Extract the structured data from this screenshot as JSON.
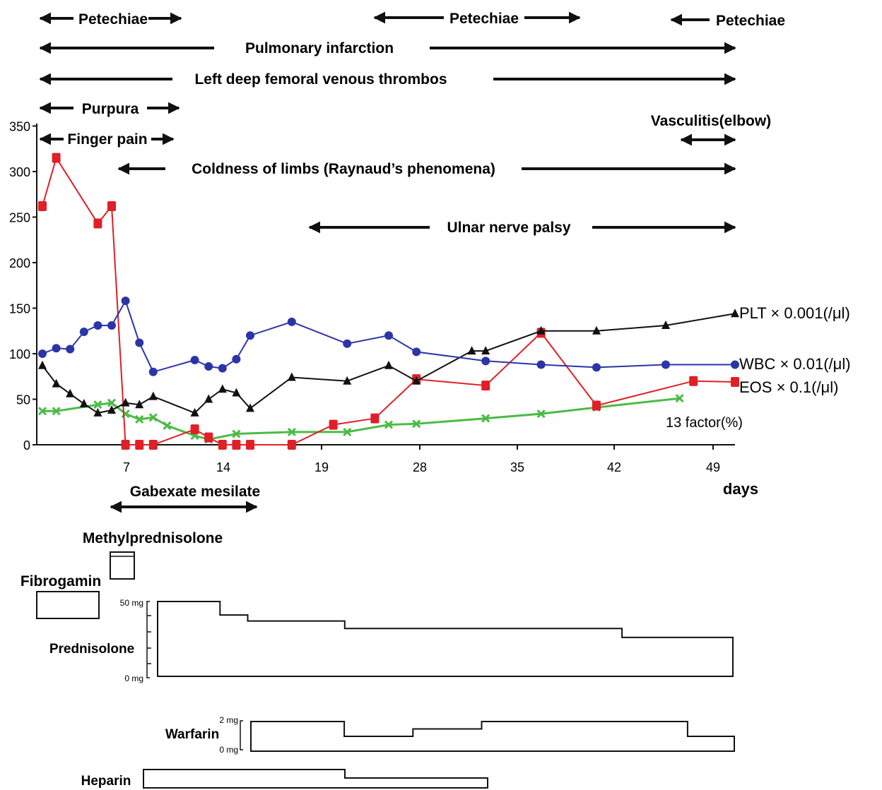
{
  "colors": {
    "plt": "#111111",
    "wbc": "#2b35a8",
    "eos": "#e01f26",
    "factor13": "#4cbb47",
    "axis": "#111111",
    "text": "#111111"
  },
  "clinical_events": [
    {
      "label": "Petechiae",
      "row": 1,
      "start_day": 1,
      "end_day": 14
    },
    {
      "label": "Petechiae",
      "row": 1,
      "start_day": 32,
      "end_day": 25
    },
    {
      "label": "Petechiae",
      "row": 1,
      "start_day": 47,
      "end_day": 47
    },
    {
      "label": "Pulmonary infarction",
      "row": 2,
      "start_day": 1,
      "end_day": 50
    },
    {
      "label": "Left deep femoral venous thrombos",
      "row": 3,
      "start_day": 1,
      "end_day": 50
    },
    {
      "label": "Purpura",
      "row": 4,
      "start_day": 1,
      "end_day": 14
    },
    {
      "label": "Vasculitis(elbow)",
      "row": 5,
      "start_day": 46,
      "end_day": 50
    },
    {
      "label": "Finger pain",
      "row": 5,
      "start_day": 1,
      "end_day": 13
    },
    {
      "label": "Coldness of limbs (Raynaud’s phenomena)",
      "row": 6,
      "start_day": 7,
      "end_day": 50
    },
    {
      "label": "Ulnar nerve palsy",
      "row": 7,
      "start_day": 19,
      "end_day": 50
    }
  ],
  "chart_data": {
    "type": "line",
    "xlabel": "days",
    "ylabel": "",
    "ylim": [
      0,
      350
    ],
    "y_ticks": [
      "0",
      "50",
      "100",
      "150",
      "200",
      "250",
      "300",
      "350"
    ],
    "x_ticks": [
      "7",
      "14",
      "19",
      "28",
      "35",
      "42",
      "49"
    ],
    "grid": false,
    "series": [
      {
        "name": "EOS × 0.1(/μl)",
        "key": "eos",
        "marker": "square",
        "points": [
          [
            0,
            262
          ],
          [
            1,
            315
          ],
          [
            4,
            243
          ],
          [
            5,
            262
          ],
          [
            6,
            0
          ],
          [
            7,
            0
          ],
          [
            8,
            0
          ],
          [
            11,
            17
          ],
          [
            12,
            8
          ],
          [
            13,
            0
          ],
          [
            14,
            0
          ],
          [
            15,
            0
          ],
          [
            18,
            0
          ],
          [
            21,
            22
          ],
          [
            24,
            29
          ],
          [
            27,
            72
          ],
          [
            32,
            65
          ],
          [
            36,
            123
          ],
          [
            40,
            43
          ],
          [
            47,
            70
          ],
          [
            50,
            69
          ]
        ]
      },
      {
        "name": "WBC × 0.01(/μl)",
        "key": "wbc",
        "marker": "circle",
        "points": [
          [
            0,
            100
          ],
          [
            1,
            106
          ],
          [
            2,
            105
          ],
          [
            3,
            124
          ],
          [
            4,
            131
          ],
          [
            5,
            131
          ],
          [
            6,
            158
          ],
          [
            7,
            112
          ],
          [
            8,
            80
          ],
          [
            11,
            93
          ],
          [
            12,
            86
          ],
          [
            13,
            84
          ],
          [
            14,
            94
          ],
          [
            15,
            120
          ],
          [
            18,
            135
          ],
          [
            22,
            111
          ],
          [
            25,
            120
          ],
          [
            27,
            102
          ],
          [
            32,
            92
          ],
          [
            36,
            88
          ],
          [
            40,
            85
          ],
          [
            45,
            88
          ],
          [
            50,
            88
          ]
        ]
      },
      {
        "name": "PLT × 0.001(/μl)",
        "key": "plt",
        "marker": "triangle",
        "points": [
          [
            0,
            87
          ],
          [
            1,
            67
          ],
          [
            2,
            56
          ],
          [
            3,
            45
          ],
          [
            4,
            35
          ],
          [
            5,
            38
          ],
          [
            6,
            46
          ],
          [
            7,
            44
          ],
          [
            8,
            53
          ],
          [
            11,
            35
          ],
          [
            12,
            50
          ],
          [
            13,
            61
          ],
          [
            14,
            57
          ],
          [
            15,
            40
          ],
          [
            18,
            74
          ],
          [
            22,
            70
          ],
          [
            25,
            87
          ],
          [
            27,
            70
          ],
          [
            31,
            103
          ],
          [
            32,
            103
          ],
          [
            36,
            125
          ],
          [
            40,
            125
          ],
          [
            45,
            131
          ],
          [
            50,
            144
          ]
        ]
      },
      {
        "name": "13 factor(%)",
        "key": "factor13",
        "marker": "x",
        "points": [
          [
            0,
            37
          ],
          [
            1,
            37
          ],
          [
            4,
            44
          ],
          [
            5,
            46
          ],
          [
            6,
            34
          ],
          [
            7,
            28
          ],
          [
            8,
            30
          ],
          [
            9,
            21
          ],
          [
            11,
            10
          ],
          [
            12,
            6
          ],
          [
            14,
            12
          ],
          [
            18,
            14
          ],
          [
            22,
            14
          ],
          [
            25,
            22
          ],
          [
            27,
            23
          ],
          [
            32,
            29
          ],
          [
            36,
            34
          ],
          [
            40,
            41
          ],
          [
            46,
            51
          ]
        ]
      }
    ]
  },
  "treatments": {
    "gabexate": {
      "label": "Gabexate mesilate",
      "start_day": 6,
      "end_day": 15
    },
    "methylprednisolone": {
      "label": "Methylprednisolone"
    },
    "fibrogamin": {
      "label": "Fibrogamin"
    },
    "prednisolone": {
      "label": "Prednisolone",
      "max_label": "50 mg",
      "min_label": "0 mg",
      "dose_mg_steps": [
        [
          0,
          50
        ],
        [
          4.5,
          41
        ],
        [
          6.5,
          37
        ],
        [
          13.5,
          32
        ],
        [
          33.5,
          26
        ],
        [
          41,
          26
        ]
      ]
    },
    "warfarin": {
      "label": "Warfarin",
      "max_label": "2 mg",
      "min_label": "0 mg",
      "dose_mg_steps": [
        [
          0,
          2
        ],
        [
          6.8,
          1
        ],
        [
          11.8,
          1.5
        ],
        [
          16.8,
          2
        ],
        [
          31.8,
          1
        ],
        [
          34,
          1
        ]
      ]
    },
    "heparin": {
      "label": "Heparin"
    }
  }
}
